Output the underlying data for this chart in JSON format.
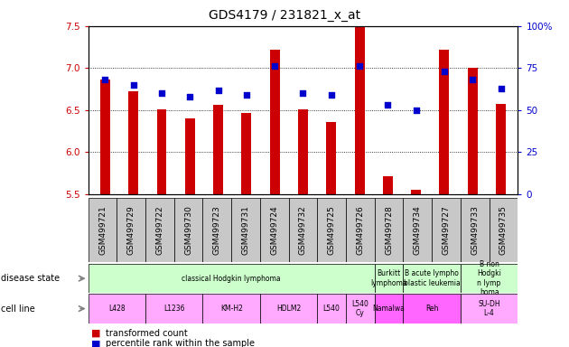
{
  "title": "GDS4179 / 231821_x_at",
  "samples": [
    "GSM499721",
    "GSM499729",
    "GSM499722",
    "GSM499730",
    "GSM499723",
    "GSM499731",
    "GSM499724",
    "GSM499732",
    "GSM499725",
    "GSM499726",
    "GSM499728",
    "GSM499734",
    "GSM499727",
    "GSM499733",
    "GSM499735"
  ],
  "transformed_count": [
    6.86,
    6.72,
    6.51,
    6.4,
    6.56,
    6.47,
    7.22,
    6.51,
    6.36,
    7.5,
    5.72,
    5.55,
    7.22,
    7.0,
    6.57
  ],
  "percentile_rank": [
    68,
    65,
    60,
    58,
    62,
    59,
    76,
    60,
    59,
    76,
    53,
    50,
    73,
    68,
    63
  ],
  "ylim_left": [
    5.5,
    7.5
  ],
  "ylim_right": [
    0,
    100
  ],
  "yticks_left": [
    5.5,
    6.0,
    6.5,
    7.0,
    7.5
  ],
  "yticks_right": [
    0,
    25,
    50,
    75,
    100
  ],
  "bar_color": "#cc0000",
  "dot_color": "#0000cc",
  "bg_color": "#ffffff",
  "tick_bg_color": "#c0c0c0",
  "disease_state_color": "#ccffcc",
  "cell_line_color_light": "#ffaaff",
  "cell_line_color_dark": "#ff66ff",
  "disease_state_groups": [
    {
      "label": "classical Hodgkin lymphoma",
      "start": 0,
      "end": 9
    },
    {
      "label": "Burkitt\nlymphoma",
      "start": 10,
      "end": 10
    },
    {
      "label": "B acute lympho\nblastic leukemia",
      "start": 11,
      "end": 12
    },
    {
      "label": "B non\nHodgki\nn lymp\nhoma",
      "start": 13,
      "end": 14
    }
  ],
  "cell_line_groups": [
    {
      "label": "L428",
      "start": 0,
      "end": 1,
      "dark": false
    },
    {
      "label": "L1236",
      "start": 2,
      "end": 3,
      "dark": false
    },
    {
      "label": "KM-H2",
      "start": 4,
      "end": 5,
      "dark": false
    },
    {
      "label": "HDLM2",
      "start": 6,
      "end": 7,
      "dark": false
    },
    {
      "label": "L540",
      "start": 8,
      "end": 8,
      "dark": false
    },
    {
      "label": "L540\nCy",
      "start": 9,
      "end": 9,
      "dark": false
    },
    {
      "label": "Namalwa",
      "start": 10,
      "end": 10,
      "dark": true
    },
    {
      "label": "Reh",
      "start": 11,
      "end": 12,
      "dark": true
    },
    {
      "label": "SU-DH\nL-4",
      "start": 13,
      "end": 14,
      "dark": false
    }
  ],
  "xlabel_fontsize": 6.5,
  "ylabel_left_color": "#cc0000",
  "ylabel_right_color": "#0000cc",
  "tick_fontsize": 7.5,
  "bar_width": 0.35
}
